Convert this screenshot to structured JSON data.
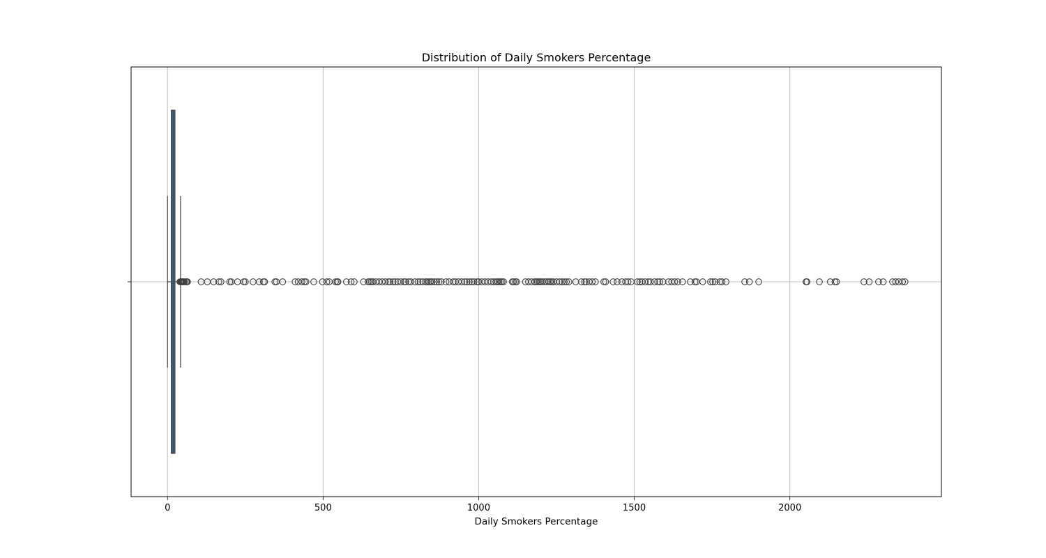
{
  "chart_data": {
    "type": "boxplot",
    "orientation": "horizontal",
    "title": "Distribution of Daily Smokers Percentage",
    "xlabel": "Daily Smokers Percentage",
    "ylabel": "",
    "xlim": [
      -117,
      2487
    ],
    "xticks": [
      0,
      500,
      1000,
      1500,
      2000
    ],
    "xtick_labels": [
      "0",
      "500",
      "1000",
      "1500",
      "2000"
    ],
    "grid": true,
    "legend": "none",
    "box_color": "#3c6f9c",
    "line_color": "#3f3f3f",
    "box": {
      "whisker_low": 0,
      "q1": 12,
      "median": 18,
      "q3": 24,
      "whisker_high": 42
    },
    "outliers": [
      40,
      42,
      44,
      46,
      48,
      50,
      52,
      55,
      60,
      62,
      64,
      108,
      128,
      148,
      165,
      172,
      200,
      205,
      225,
      245,
      250,
      275,
      295,
      308,
      312,
      345,
      350,
      370,
      410,
      420,
      432,
      440,
      445,
      470,
      498,
      512,
      520,
      540,
      545,
      548,
      575,
      590,
      600,
      630,
      645,
      650,
      655,
      660,
      670,
      680,
      690,
      700,
      710,
      715,
      725,
      732,
      740,
      750,
      760,
      765,
      775,
      782,
      795,
      805,
      812,
      820,
      830,
      835,
      840,
      845,
      850,
      858,
      865,
      872,
      880,
      895,
      905,
      918,
      925,
      935,
      945,
      955,
      962,
      970,
      978,
      985,
      995,
      1000,
      1010,
      1020,
      1030,
      1040,
      1048,
      1055,
      1060,
      1065,
      1070,
      1075,
      1080,
      1108,
      1112,
      1118,
      1122,
      1150,
      1160,
      1170,
      1180,
      1185,
      1190,
      1195,
      1200,
      1205,
      1212,
      1218,
      1225,
      1230,
      1235,
      1240,
      1250,
      1260,
      1268,
      1275,
      1282,
      1290,
      1312,
      1330,
      1340,
      1345,
      1355,
      1365,
      1375,
      1402,
      1408,
      1432,
      1445,
      1460,
      1472,
      1480,
      1490,
      1510,
      1518,
      1525,
      1535,
      1545,
      1552,
      1565,
      1575,
      1582,
      1592,
      1610,
      1620,
      1630,
      1640,
      1655,
      1680,
      1695,
      1700,
      1720,
      1745,
      1752,
      1760,
      1775,
      1782,
      1795,
      1855,
      1870,
      1900,
      2052,
      2055,
      2095,
      2130,
      2145,
      2150,
      2238,
      2255,
      2285,
      2300,
      2330,
      2340,
      2350,
      2362,
      2370
    ]
  }
}
